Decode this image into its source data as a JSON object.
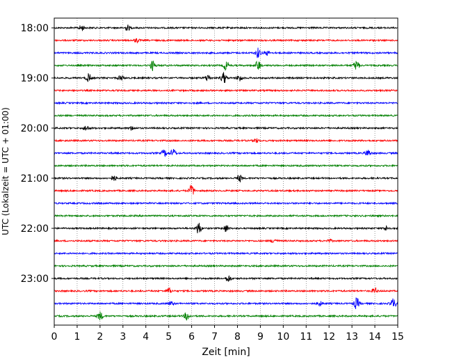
{
  "chart_data": {
    "type": "line",
    "title": "",
    "xlabel": "Zeit  [min]",
    "ylabel": "UTC (Lokalzeit = UTC + 01:00)",
    "xlim": [
      0,
      15
    ],
    "x_ticks": [
      "0",
      "1",
      "2",
      "3",
      "4",
      "5",
      "6",
      "7",
      "8",
      "9",
      "10",
      "11",
      "12",
      "13",
      "14",
      "15"
    ],
    "y_ticks": [
      "18:00",
      "19:00",
      "20:00",
      "21:00",
      "22:00",
      "23:00"
    ],
    "vertical_grid": true,
    "grid_style": "dotted",
    "trace_interval_minutes": 15,
    "start_time": "18:00",
    "trace_count": 24,
    "colors": [
      "#000000",
      "#ff0000",
      "#0000ff",
      "#008000"
    ],
    "events": [
      {
        "trace": 0,
        "x": 1.2,
        "amp": 4
      },
      {
        "trace": 0,
        "x": 3.2,
        "amp": 4
      },
      {
        "trace": 1,
        "x": 3.6,
        "amp": 3
      },
      {
        "trace": 2,
        "x": 8.9,
        "amp": 7
      },
      {
        "trace": 2,
        "x": 9.3,
        "amp": 3
      },
      {
        "trace": 3,
        "x": 4.3,
        "amp": 7
      },
      {
        "trace": 3,
        "x": 7.5,
        "amp": 7
      },
      {
        "trace": 3,
        "x": 8.9,
        "amp": 7
      },
      {
        "trace": 3,
        "x": 13.2,
        "amp": 7
      },
      {
        "trace": 4,
        "x": 1.5,
        "amp": 6
      },
      {
        "trace": 4,
        "x": 2.9,
        "amp": 4
      },
      {
        "trace": 4,
        "x": 6.7,
        "amp": 5
      },
      {
        "trace": 4,
        "x": 7.4,
        "amp": 8
      },
      {
        "trace": 4,
        "x": 8.1,
        "amp": 5
      },
      {
        "trace": 8,
        "x": 1.4,
        "amp": 4
      },
      {
        "trace": 8,
        "x": 3.4,
        "amp": 3
      },
      {
        "trace": 9,
        "x": 8.8,
        "amp": 3
      },
      {
        "trace": 10,
        "x": 4.8,
        "amp": 5
      },
      {
        "trace": 10,
        "x": 5.2,
        "amp": 6
      },
      {
        "trace": 10,
        "x": 13.7,
        "amp": 5
      },
      {
        "trace": 12,
        "x": 2.6,
        "amp": 4
      },
      {
        "trace": 12,
        "x": 8.1,
        "amp": 5
      },
      {
        "trace": 13,
        "x": 6.0,
        "amp": 8
      },
      {
        "trace": 16,
        "x": 6.3,
        "amp": 9
      },
      {
        "trace": 16,
        "x": 7.5,
        "amp": 5
      },
      {
        "trace": 16,
        "x": 14.5,
        "amp": 3
      },
      {
        "trace": 17,
        "x": 9.6,
        "amp": 3
      },
      {
        "trace": 17,
        "x": 12.0,
        "amp": 2
      },
      {
        "trace": 20,
        "x": 7.6,
        "amp": 5
      },
      {
        "trace": 21,
        "x": 5.0,
        "amp": 4
      },
      {
        "trace": 21,
        "x": 14.0,
        "amp": 4
      },
      {
        "trace": 22,
        "x": 5.1,
        "amp": 3
      },
      {
        "trace": 22,
        "x": 11.6,
        "amp": 3
      },
      {
        "trace": 22,
        "x": 13.2,
        "amp": 8
      },
      {
        "trace": 22,
        "x": 14.8,
        "amp": 7
      },
      {
        "trace": 23,
        "x": 2.0,
        "amp": 6
      },
      {
        "trace": 23,
        "x": 5.8,
        "amp": 6
      }
    ]
  }
}
